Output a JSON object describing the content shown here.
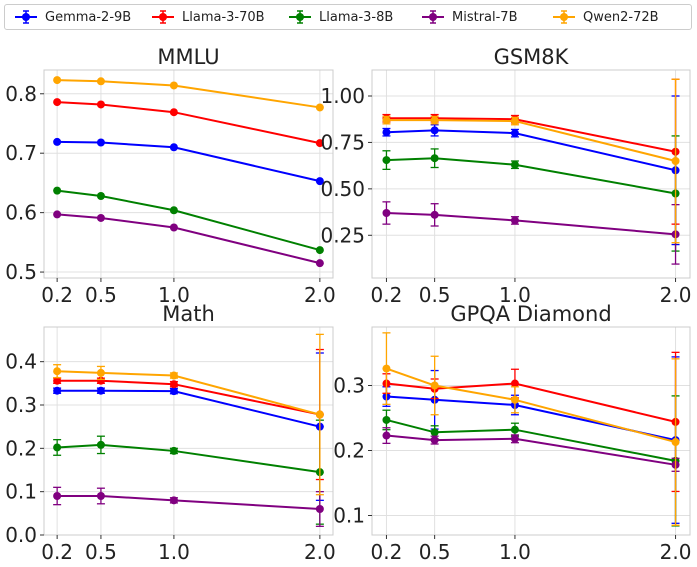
{
  "legend": [
    {
      "name": "Gemma-2-9B",
      "color": "#0000ff"
    },
    {
      "name": "Llama-3-70B",
      "color": "#ff0000"
    },
    {
      "name": "Llama-3-8B",
      "color": "#008000"
    },
    {
      "name": "Mistral-7B",
      "color": "#800080"
    },
    {
      "name": "Qwen2-72B",
      "color": "#ffa500"
    }
  ],
  "chart_data": [
    {
      "type": "line",
      "title": "MMLU",
      "x": [
        0.2,
        0.5,
        1.0,
        2.0
      ],
      "x_ticks": [
        "0.2",
        "0.5",
        "1.0",
        "2.0"
      ],
      "y_ticks": [
        "0.5",
        "0.6",
        "0.7",
        "0.8"
      ],
      "ylim": [
        0.49,
        0.84
      ],
      "grid": true,
      "series": [
        {
          "name": "Gemma-2-9B",
          "values": [
            0.719,
            0.718,
            0.71,
            0.653
          ],
          "err": [
            0,
            0,
            0,
            0
          ]
        },
        {
          "name": "Llama-3-70B",
          "values": [
            0.786,
            0.782,
            0.769,
            0.717
          ],
          "err": [
            0,
            0,
            0,
            0
          ]
        },
        {
          "name": "Llama-3-8B",
          "values": [
            0.637,
            0.628,
            0.604,
            0.537
          ],
          "err": [
            0,
            0,
            0,
            0
          ]
        },
        {
          "name": "Mistral-7B",
          "values": [
            0.597,
            0.591,
            0.575,
            0.515
          ],
          "err": [
            0,
            0,
            0,
            0
          ]
        },
        {
          "name": "Qwen2-72B",
          "values": [
            0.823,
            0.821,
            0.814,
            0.777
          ],
          "err": [
            0,
            0,
            0,
            0
          ]
        }
      ]
    },
    {
      "type": "line",
      "title": "GSM8K",
      "x": [
        0.2,
        0.5,
        1.0,
        2.0
      ],
      "x_ticks": [
        "0.2",
        "0.5",
        "1.0",
        "2.0"
      ],
      "y_ticks": [
        "0.25",
        "0.50",
        "0.75",
        "1.00"
      ],
      "ylim": [
        0.02,
        1.14
      ],
      "grid": true,
      "series": [
        {
          "name": "Gemma-2-9B",
          "values": [
            0.805,
            0.815,
            0.8,
            0.6
          ],
          "err": [
            0.02,
            0.03,
            0.02,
            0.4
          ]
        },
        {
          "name": "Llama-3-70B",
          "values": [
            0.88,
            0.88,
            0.875,
            0.7
          ],
          "err": [
            0.02,
            0.02,
            0.02,
            0.39
          ]
        },
        {
          "name": "Llama-3-8B",
          "values": [
            0.655,
            0.665,
            0.63,
            0.475
          ],
          "err": [
            0.05,
            0.05,
            0.02,
            0.31
          ]
        },
        {
          "name": "Mistral-7B",
          "values": [
            0.37,
            0.36,
            0.33,
            0.255
          ],
          "err": [
            0.06,
            0.06,
            0.02,
            0.16
          ]
        },
        {
          "name": "Qwen2-72B",
          "values": [
            0.87,
            0.87,
            0.865,
            0.65
          ],
          "err": [
            0.02,
            0.02,
            0.02,
            0.44
          ]
        }
      ]
    },
    {
      "type": "line",
      "title": "Math",
      "x": [
        0.2,
        0.5,
        1.0,
        2.0
      ],
      "x_ticks": [
        "0.2",
        "0.5",
        "1.0",
        "2.0"
      ],
      "y_ticks": [
        "0.0",
        "0.1",
        "0.2",
        "0.3",
        "0.4"
      ],
      "ylim": [
        0.0,
        0.48
      ],
      "grid": true,
      "series": [
        {
          "name": "Gemma-2-9B",
          "values": [
            0.333,
            0.333,
            0.332,
            0.25
          ],
          "err": [
            0.006,
            0.006,
            0.006,
            0.17
          ]
        },
        {
          "name": "Llama-3-70B",
          "values": [
            0.356,
            0.356,
            0.348,
            0.278
          ],
          "err": [
            0.006,
            0.006,
            0.006,
            0.15
          ]
        },
        {
          "name": "Llama-3-8B",
          "values": [
            0.202,
            0.208,
            0.194,
            0.145
          ],
          "err": [
            0.018,
            0.02,
            0.006,
            0.12
          ]
        },
        {
          "name": "Mistral-7B",
          "values": [
            0.09,
            0.09,
            0.08,
            0.06
          ],
          "err": [
            0.02,
            0.018,
            0.006,
            0.04
          ]
        },
        {
          "name": "Qwen2-72B",
          "values": [
            0.378,
            0.374,
            0.368,
            0.278
          ],
          "err": [
            0.015,
            0.015,
            0.006,
            0.185
          ]
        }
      ]
    },
    {
      "type": "line",
      "title": "GPQA Diamond",
      "x": [
        0.2,
        0.5,
        1.0,
        2.0
      ],
      "x_ticks": [
        "0.2",
        "0.5",
        "1.0",
        "2.0"
      ],
      "y_ticks": [
        "0.1",
        "0.2",
        "0.3"
      ],
      "ylim": [
        0.07,
        0.39
      ],
      "grid": true,
      "series": [
        {
          "name": "Gemma-2-9B",
          "values": [
            0.283,
            0.278,
            0.27,
            0.216
          ],
          "err": [
            0.015,
            0.045,
            0.015,
            0.128
          ]
        },
        {
          "name": "Llama-3-70B",
          "values": [
            0.303,
            0.295,
            0.303,
            0.244
          ],
          "err": [
            0.015,
            0.015,
            0.022,
            0.107
          ]
        },
        {
          "name": "Llama-3-8B",
          "values": [
            0.247,
            0.228,
            0.232,
            0.184
          ],
          "err": [
            0.015,
            0.01,
            0.01,
            0.1
          ]
        },
        {
          "name": "Mistral-7B",
          "values": [
            0.223,
            0.216,
            0.218,
            0.178
          ],
          "err": [
            0.012,
            0.006,
            0.006,
            0.01
          ]
        },
        {
          "name": "Qwen2-72B",
          "values": [
            0.326,
            0.3,
            0.278,
            0.213
          ],
          "err": [
            0.055,
            0.045,
            0.02,
            0.128
          ]
        }
      ]
    }
  ]
}
